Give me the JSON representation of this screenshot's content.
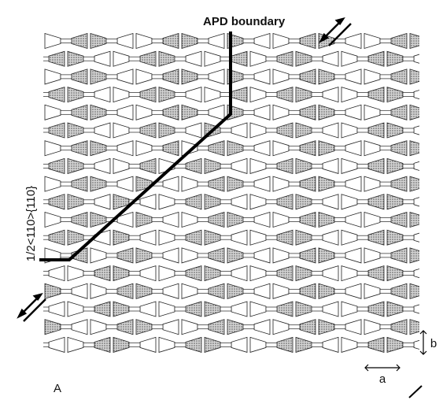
{
  "labels": {
    "boundary": "APD boundary",
    "vector": "1/2<110>{110}",
    "b": "b",
    "a": "a",
    "panel": "A"
  }
}
